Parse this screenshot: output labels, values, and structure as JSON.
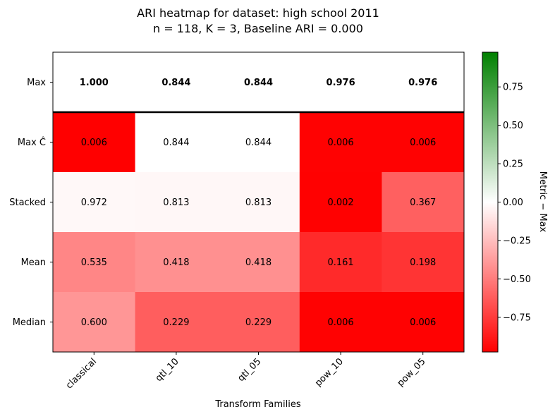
{
  "chart_data": {
    "type": "heatmap",
    "title_line1": "ARI heatmap for dataset: high school 2011",
    "title_line2": "n = 118, K = 3, Baseline ARI = 0.000",
    "xlabel": "Transform Families",
    "ylabel": "",
    "colorbar_label": "Metric − Max",
    "x_categories": [
      "classical",
      "qtl_10",
      "qtl_05",
      "pow_10",
      "pow_05"
    ],
    "y_categories": [
      "Max",
      "Max Ĉ",
      "Stacked",
      "Mean",
      "Median"
    ],
    "value_labels": [
      [
        "1.000",
        "0.844",
        "0.844",
        "0.976",
        "0.976"
      ],
      [
        "0.006",
        "0.844",
        "0.844",
        "0.006",
        "0.006"
      ],
      [
        "0.972",
        "0.813",
        "0.813",
        "0.002",
        "0.367"
      ],
      [
        "0.535",
        "0.418",
        "0.418",
        "0.161",
        "0.198"
      ],
      [
        "0.600",
        "0.229",
        "0.229",
        "0.006",
        "0.006"
      ]
    ],
    "max_row": [
      1.0,
      0.844,
      0.844,
      0.976,
      0.976
    ],
    "colorbar_range": [
      -0.976,
      0.976
    ],
    "colorbar_ticks": [
      0.75,
      0.5,
      0.25,
      0.0,
      -0.25,
      -0.5,
      -0.75
    ],
    "colorbar_tick_labels": [
      "0.75",
      "0.50",
      "0.25",
      "0.00",
      "−0.25",
      "−0.50",
      "−0.75"
    ],
    "colors": {
      "negative": "#ff0000",
      "zero": "#ffffff",
      "positive": "#008000",
      "max_row_fill": "#ffffff"
    },
    "max_row_bold": true,
    "grid": false
  }
}
